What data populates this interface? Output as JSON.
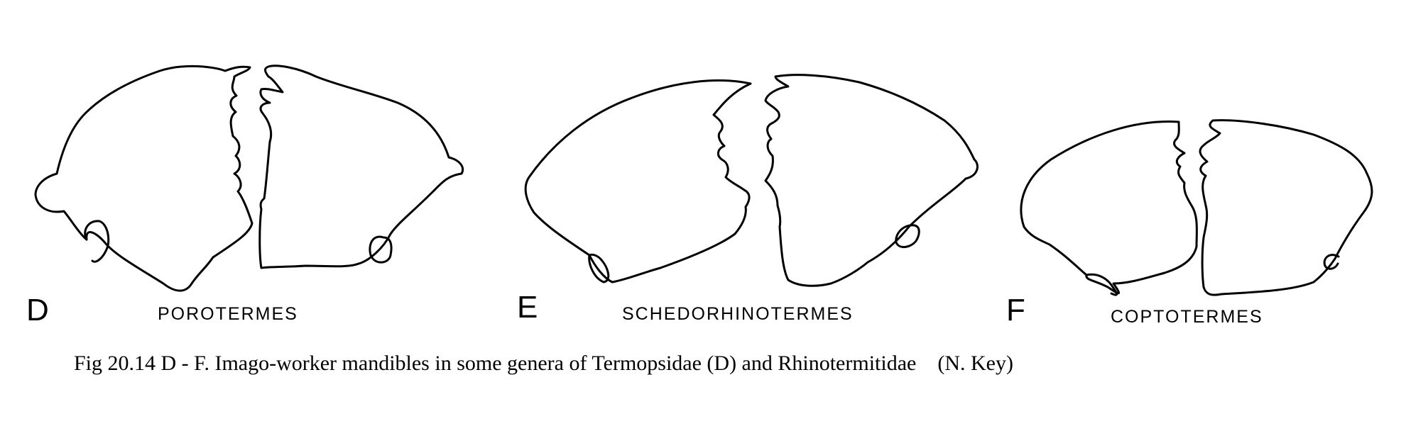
{
  "panels": [
    {
      "letter": "D",
      "genus": "POROTERMES"
    },
    {
      "letter": "E",
      "genus": "SCHEDORHINOTERMES"
    },
    {
      "letter": "F",
      "genus": "COPTOTERMES"
    }
  ],
  "caption": "Fig 20.14 D - F. Imago-worker mandibles in some genera of Termopsidae (D) and Rhinotermitidae    (N. Key)"
}
